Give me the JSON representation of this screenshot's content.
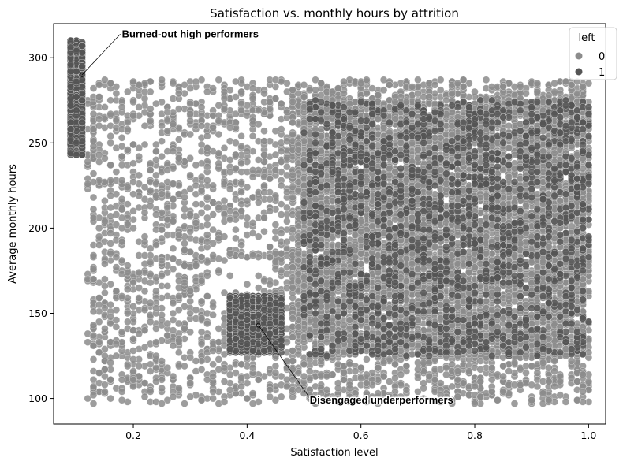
{
  "chart_data": {
    "type": "scatter",
    "title": "Satisfaction vs. monthly hours by attrition",
    "xlabel": "Satisfaction level",
    "ylabel": "Average monthly hours",
    "xlim": [
      0.06,
      1.03
    ],
    "ylim": [
      85,
      320
    ],
    "x_ticks": [
      0.2,
      0.4,
      0.6,
      0.8,
      1.0
    ],
    "x_tick_labels": [
      "0.2",
      "0.4",
      "0.6",
      "0.8",
      "1.0"
    ],
    "y_ticks": [
      100,
      150,
      200,
      250,
      300
    ],
    "y_tick_labels": [
      "100",
      "150",
      "200",
      "250",
      "300"
    ],
    "grid": false,
    "legend": {
      "title": "left",
      "placement": "top-right",
      "entries": [
        "0",
        "1"
      ]
    },
    "series": [
      {
        "name": "0",
        "color": "#8c8c8c",
        "clusters": [
          {
            "x_range": [
              0.12,
              0.48
            ],
            "y_range": [
              97,
              287
            ],
            "approx_points": 1500
          },
          {
            "x_range": [
              0.48,
              1.0
            ],
            "y_range": [
              97,
              287
            ],
            "approx_points": 3500
          },
          {
            "x_range": [
              0.48,
              1.0
            ],
            "y_range": [
              125,
              275
            ],
            "approx_points": 4000
          }
        ]
      },
      {
        "name": "1",
        "color": "#555555",
        "clusters": [
          {
            "x_range": [
              0.09,
              0.11
            ],
            "y_range": [
              243,
              310
            ],
            "approx_points": 900
          },
          {
            "x_range": [
              0.37,
              0.46
            ],
            "y_range": [
              127,
              160
            ],
            "approx_points": 1300
          },
          {
            "x_range": [
              0.5,
              1.0
            ],
            "y_range": [
              125,
              275
            ],
            "approx_points": 1500
          }
        ]
      }
    ],
    "annotations": [
      {
        "text": "Burned-out high performers",
        "point": [
          0.11,
          290
        ],
        "text_at": [
          0.18,
          312
        ]
      },
      {
        "text": "Disengaged underperformers",
        "point": [
          0.42,
          143
        ],
        "text_at": [
          0.51,
          97
        ]
      }
    ]
  }
}
